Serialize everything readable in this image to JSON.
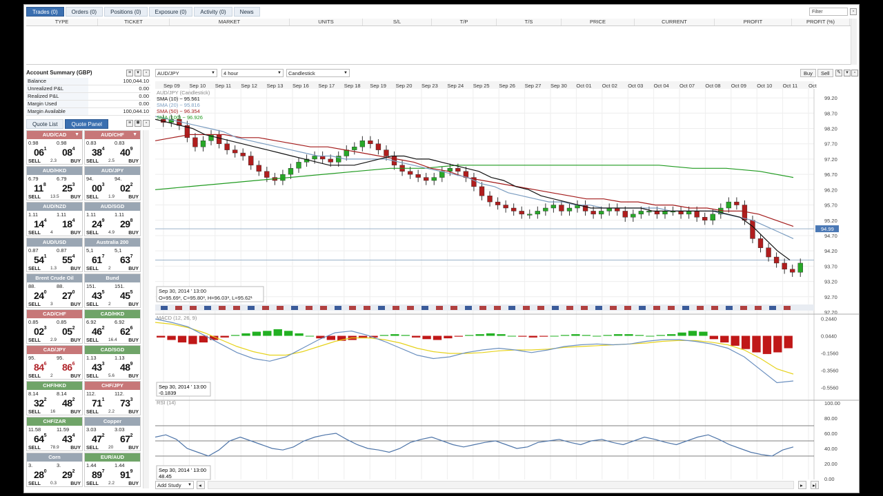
{
  "trades_panel": {
    "tabs": [
      {
        "label": "Trades (0)"
      },
      {
        "label": "Orders (0)"
      },
      {
        "label": "Positions (0)"
      },
      {
        "label": "Exposure (0)"
      },
      {
        "label": "Activity (0)"
      },
      {
        "label": "News"
      }
    ],
    "filter_placeholder": "Filter",
    "columns": [
      "TYPE",
      "TICKET",
      "MARKET",
      "UNITS",
      "S/L",
      "T/P",
      "T/S",
      "PRICE",
      "CURRENT",
      "PROFIT",
      "PROFIT (%)"
    ]
  },
  "account": {
    "title": "Account Summary (GBP)",
    "rows": [
      {
        "k": "Balance",
        "v": "100,044.10"
      },
      {
        "k": "Unrealized P&L",
        "v": "0.00"
      },
      {
        "k": "Realized P&L",
        "v": "0.00"
      },
      {
        "k": "Margin Used",
        "v": "0.00"
      },
      {
        "k": "Margin Available",
        "v": "100,044.10"
      }
    ]
  },
  "quote_tabs": [
    "Quote List",
    "Quote Panel"
  ],
  "quotes": [
    {
      "name": "AUD/CAD",
      "dir": "neg",
      "sell_small": "0.98",
      "sell_big": "06",
      "sell_sup": "1",
      "buy_small": "0.98",
      "buy_big": "08",
      "buy_sup": "4",
      "spread": "2.3",
      "chev": true
    },
    {
      "name": "AUD/CHF",
      "dir": "neg",
      "sell_small": "0.83",
      "sell_big": "38",
      "sell_sup": "4",
      "buy_small": "0.83",
      "buy_big": "40",
      "buy_sup": "9",
      "spread": "2.5",
      "chev": true
    },
    {
      "name": "AUD/HKD",
      "dir": "pos",
      "sell_small": "6.79",
      "sell_big": "11",
      "sell_sup": "8",
      "buy_small": "6.79",
      "buy_big": "25",
      "buy_sup": "3",
      "spread": "13.5"
    },
    {
      "name": "AUD/JPY",
      "dir": "pos",
      "sell_small": "94.",
      "sell_big": "00",
      "sell_sup": "3",
      "buy_small": "94.",
      "buy_big": "02",
      "buy_sup": "2",
      "spread": "1.9"
    },
    {
      "name": "AUD/NZD",
      "dir": "pos",
      "sell_small": "1.11",
      "sell_big": "14",
      "sell_sup": "4",
      "buy_small": "1.11",
      "buy_big": "18",
      "buy_sup": "4",
      "spread": "4"
    },
    {
      "name": "AUD/SGD",
      "dir": "pos",
      "sell_small": "1.11",
      "sell_big": "24",
      "sell_sup": "9",
      "buy_small": "1.11",
      "buy_big": "29",
      "buy_sup": "8",
      "spread": "4.9"
    },
    {
      "name": "AUD/USD",
      "dir": "pos",
      "sell_small": "0.87",
      "sell_big": "54",
      "sell_sup": "1",
      "buy_small": "0.87",
      "buy_big": "55",
      "buy_sup": "4",
      "spread": "1.3"
    },
    {
      "name": "Australia 200",
      "dir": "pos",
      "sell_small": "5,1",
      "sell_big": "61",
      "sell_sup": "7",
      "buy_small": "5,1",
      "buy_big": "63",
      "buy_sup": "7",
      "spread": "2"
    },
    {
      "name": "Brent Crude Oil",
      "dir": "pos",
      "sell_small": "88.",
      "sell_big": "24",
      "sell_sup": "0",
      "buy_small": "88.",
      "buy_big": "27",
      "buy_sup": "0",
      "spread": "3"
    },
    {
      "name": "Bund",
      "dir": "pos",
      "sell_small": "151.",
      "sell_big": "43",
      "sell_sup": "5",
      "buy_small": "151.",
      "buy_big": "45",
      "buy_sup": "5",
      "spread": "2"
    },
    {
      "name": "CAD/CHF",
      "dir": "neg",
      "sell_small": "0.85",
      "sell_big": "02",
      "sell_sup": "3",
      "buy_small": "0.85",
      "buy_big": "05",
      "buy_sup": "2",
      "spread": "2.9"
    },
    {
      "name": "CAD/HKD",
      "dir": "green",
      "sell_small": "6.92",
      "sell_big": "46",
      "sell_sup": "2",
      "buy_small": "6.92",
      "buy_big": "62",
      "buy_sup": "6",
      "spread": "16.4"
    },
    {
      "name": "CAD/JPY",
      "dir": "neg",
      "sell_small": "95.",
      "sell_big": "84",
      "sell_sup": "6",
      "buy_small": "95.",
      "buy_big": "86",
      "buy_sup": "6",
      "spread": "2",
      "red": true
    },
    {
      "name": "CAD/SGD",
      "dir": "green",
      "sell_small": "1.13",
      "sell_big": "43",
      "sell_sup": "3",
      "buy_small": "1.13",
      "buy_big": "48",
      "buy_sup": "9",
      "spread": "5.6"
    },
    {
      "name": "CHF/HKD",
      "dir": "green",
      "sell_small": "8.14",
      "sell_big": "32",
      "sell_sup": "2",
      "buy_small": "8.14",
      "buy_big": "48",
      "buy_sup": "2",
      "spread": "16"
    },
    {
      "name": "CHF/JPY",
      "dir": "neg",
      "sell_small": "112.",
      "sell_big": "71",
      "sell_sup": "1",
      "buy_small": "112.",
      "buy_big": "73",
      "buy_sup": "3",
      "spread": "2.2"
    },
    {
      "name": "CHF/ZAR",
      "dir": "green",
      "sell_small": "11.58",
      "sell_big": "64",
      "sell_sup": "5",
      "buy_small": "11.59",
      "buy_big": "43",
      "buy_sup": "4",
      "spread": "78.9"
    },
    {
      "name": "Copper",
      "dir": "pos",
      "sell_small": "3.03",
      "sell_big": "47",
      "sell_sup": "2",
      "buy_small": "3.03",
      "buy_big": "67",
      "buy_sup": "2",
      "spread": "20"
    },
    {
      "name": "Corn",
      "dir": "pos",
      "sell_small": "3.",
      "sell_big": "28",
      "sell_sup": "0",
      "buy_small": "3.",
      "buy_big": "29",
      "buy_sup": "2",
      "spread": "0.3"
    },
    {
      "name": "EUR/AUD",
      "dir": "green",
      "sell_small": "1.44",
      "sell_big": "89",
      "sell_sup": "7",
      "buy_small": "1.44",
      "buy_big": "91",
      "buy_sup": "9",
      "spread": "2.2"
    }
  ],
  "sell_label": "SELL",
  "buy_label": "BUY",
  "chart_toolbar": {
    "instrument": "AUD/JPY",
    "timeframe": "4 hour",
    "style": "Candlestick",
    "buy": "Buy",
    "sell": "Sell"
  },
  "chart_data": {
    "type": "candlestick",
    "instrument_label": "AUD/JPY (Candlestick)",
    "legend": [
      "SMA (10) ~ 95.561",
      "SMA (20) ~ 95.816",
      "SMA (50) ~ 96.354",
      "SMA (100) ~ 96.926"
    ],
    "x_ticks": [
      "Sep 09",
      "Sep 10",
      "Sep 11",
      "Sep 12",
      "Sep 13",
      "Sep 16",
      "Sep 17",
      "Sep 18",
      "Sep 19",
      "Sep 20",
      "Sep 23",
      "Sep 24",
      "Sep 25",
      "Sep 26",
      "Sep 27",
      "Sep 30",
      "Oct 01",
      "Oct 02",
      "Oct 03",
      "Oct 04",
      "Oct 07",
      "Oct 08",
      "Oct 09",
      "Oct 10",
      "Oct 11",
      "Oct"
    ],
    "y_ticks": [
      "99.20",
      "98.70",
      "98.20",
      "97.70",
      "97.20",
      "96.70",
      "96.20",
      "95.70",
      "95.20",
      "94.70",
      "94.20",
      "93.70",
      "93.20",
      "92.70",
      "92.20"
    ],
    "ylim": [
      92.2,
      99.45
    ],
    "current_price": "94.99",
    "hline_price": 93.9,
    "info_date": "Sep 30, 2014 ' 13:00",
    "info_ohlc": "O=95.69³, C=95.80³, H=96.03³, L=95.62¹",
    "close": [
      98.4,
      98.5,
      98.3,
      97.9,
      97.6,
      97.8,
      98.0,
      97.7,
      97.5,
      97.4,
      97.3,
      97.0,
      96.8,
      96.6,
      96.5,
      96.7,
      96.9,
      97.1,
      97.2,
      97.3,
      97.2,
      97.1,
      97.3,
      97.5,
      97.6,
      97.8,
      97.7,
      97.5,
      97.3,
      97.0,
      96.8,
      96.7,
      96.6,
      96.5,
      96.6,
      96.8,
      96.9,
      96.8,
      96.6,
      96.3,
      96.0,
      95.8,
      95.7,
      95.6,
      95.5,
      95.4,
      95.4,
      95.5,
      95.6,
      95.7,
      95.5,
      95.6,
      95.7,
      95.5,
      95.4,
      95.5,
      95.6,
      95.5,
      95.3,
      95.4,
      95.5,
      95.5,
      95.4,
      95.5,
      95.5,
      95.4,
      95.5,
      95.3,
      95.2,
      95.4,
      95.6,
      95.8,
      95.7,
      95.2,
      94.6,
      94.3,
      94.0,
      93.8,
      93.6,
      93.5,
      93.8
    ],
    "sma10": [
      98.5,
      98.4,
      98.3,
      98.2,
      98.0,
      97.9,
      97.8,
      97.7,
      97.6,
      97.5,
      97.4,
      97.3,
      97.2,
      97.1,
      97.0,
      97.0,
      97.0,
      97.1,
      97.2,
      97.3,
      97.3,
      97.2,
      97.2,
      97.1,
      97.0,
      96.9,
      96.8,
      96.6,
      96.5,
      96.3,
      96.2,
      96.0,
      95.9,
      95.8,
      95.7,
      95.6,
      95.6,
      95.6,
      95.6,
      95.6,
      95.5,
      95.5,
      95.5,
      95.5,
      95.5,
      95.5,
      95.4,
      95.3,
      95.0,
      94.6,
      94.2,
      93.9
    ],
    "sma20": [
      98.6,
      98.5,
      98.4,
      98.3,
      98.2,
      98.1,
      97.9,
      97.8,
      97.7,
      97.6,
      97.5,
      97.4,
      97.3,
      97.3,
      97.2,
      97.2,
      97.2,
      97.2,
      97.1,
      97.0,
      96.9,
      96.8,
      96.7,
      96.6,
      96.4,
      96.3,
      96.1,
      96.0,
      95.9,
      95.8,
      95.8,
      95.7,
      95.7,
      95.6,
      95.6,
      95.6,
      95.6,
      95.6,
      95.5,
      95.5,
      95.5,
      95.5,
      95.4,
      95.3,
      95.2,
      95.0,
      94.8,
      94.6
    ],
    "sma50": [
      97.8,
      97.9,
      98.0,
      98.0,
      98.0,
      97.9,
      97.9,
      97.8,
      97.7,
      97.6,
      97.6,
      97.5,
      97.4,
      97.3,
      97.2,
      97.1,
      96.9,
      96.8,
      96.6,
      96.5,
      96.4,
      96.3,
      96.2,
      96.1,
      96.0,
      95.9,
      95.9,
      95.8,
      95.8,
      95.7,
      95.7,
      95.6,
      95.6,
      95.5,
      95.5,
      95.4,
      95.2,
      95.0
    ],
    "sma100": [
      96.2,
      96.3,
      96.4,
      96.5,
      96.6,
      96.7,
      96.8,
      96.9,
      96.9,
      97.0,
      97.0,
      97.0,
      97.0,
      97.0,
      97.0,
      97.0,
      96.9,
      96.9,
      96.8,
      96.6
    ],
    "macd_label": "MACD (12, 26, 9)",
    "macd_y_ticks": [
      "0.2440",
      "0.0440",
      "-0.1560",
      "-0.3560",
      "-0.5560"
    ],
    "macd_value": "-0.1839",
    "rsi_label": "RSI (14)",
    "rsi_y_ticks": [
      "100.00",
      "80.00",
      "60.00",
      "40.00",
      "20.00",
      "0.00"
    ],
    "rsi_value": "48.45",
    "rsi": [
      55,
      58,
      52,
      40,
      35,
      30,
      38,
      50,
      55,
      50,
      45,
      40,
      38,
      42,
      50,
      55,
      58,
      60,
      52,
      45,
      40,
      38,
      35,
      40,
      48,
      52,
      55,
      50,
      45,
      42,
      45,
      48,
      50,
      45,
      40,
      42,
      48,
      50,
      52,
      48,
      45,
      50,
      52,
      48,
      45,
      50,
      55,
      52,
      48,
      45,
      50,
      55,
      58,
      52,
      45,
      40,
      35,
      32,
      30,
      38,
      42
    ],
    "macd_hist": [
      -0.02,
      -0.05,
      -0.08,
      -0.1,
      -0.08,
      -0.05,
      -0.02,
      0.01,
      0.03,
      0.05,
      0.06,
      0.08,
      0.06,
      0.03,
      0.0,
      -0.03,
      -0.05,
      -0.06,
      -0.05,
      -0.03,
      -0.02,
      0.01,
      0.02,
      0.01,
      -0.02,
      -0.04,
      -0.05,
      -0.03,
      -0.01,
      0.01,
      0.02,
      0.03,
      0.02,
      0.0,
      -0.01,
      -0.02,
      -0.01,
      0.0,
      0.01,
      0.02,
      0.01,
      0.0,
      0.01,
      0.02,
      0.02,
      0.01,
      0.0,
      0.01,
      0.02,
      0.04,
      0.06,
      0.05,
      -0.04,
      -0.08,
      -0.12,
      -0.16,
      -0.2,
      -0.22,
      -0.2,
      -0.15
    ],
    "macd": [
      0.24,
      0.2,
      0.15,
      0.05,
      -0.05,
      -0.15,
      -0.22,
      -0.25,
      -0.2,
      -0.1,
      0.0,
      0.08,
      0.1,
      0.05,
      -0.02,
      -0.1,
      -0.18,
      -0.22,
      -0.2,
      -0.15,
      -0.12,
      -0.1,
      -0.12,
      -0.15,
      -0.12,
      -0.08,
      -0.06,
      -0.05,
      -0.06,
      -0.05,
      -0.02,
      0.0,
      0.0,
      -0.02,
      -0.05,
      -0.1,
      -0.2,
      -0.35,
      -0.5,
      -0.48
    ],
    "macd_signal": [
      0.2,
      0.18,
      0.14,
      0.08,
      0.0,
      -0.08,
      -0.14,
      -0.18,
      -0.18,
      -0.14,
      -0.08,
      -0.02,
      0.02,
      0.02,
      0.0,
      -0.04,
      -0.1,
      -0.14,
      -0.16,
      -0.16,
      -0.15,
      -0.13,
      -0.12,
      -0.12,
      -0.11,
      -0.09,
      -0.08,
      -0.07,
      -0.06,
      -0.05,
      -0.04,
      -0.02,
      -0.01,
      -0.01,
      -0.03,
      -0.06,
      -0.12,
      -0.22,
      -0.34,
      -0.4
    ]
  },
  "bottom": {
    "add_study": "Add Study"
  },
  "colors": {
    "sma10": "#111111",
    "sma20": "#7a9cc0",
    "sma50": "#a31a1a",
    "sma100": "#1f9a1f",
    "up": "#28a828",
    "down": "#b01e1e"
  }
}
